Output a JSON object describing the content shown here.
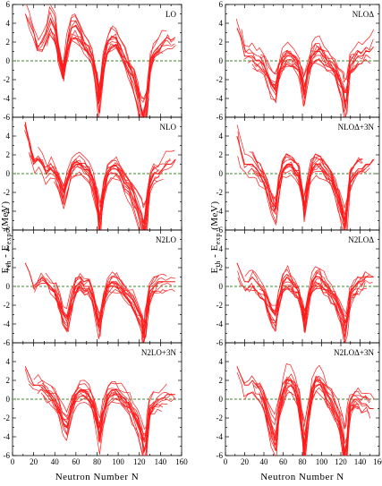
{
  "chart_data": {
    "type": "line",
    "layout": "4x2 panel grid",
    "xlabel": "Neutron Number N",
    "ylabel": "E_th - E_exp (MeV)",
    "ylabel_main": "E",
    "ylabel_sub1": "th",
    "ylabel_mid": " - E",
    "ylabel_sub2": "exp",
    "ylabel_unit": " (MeV)",
    "xlim": [
      0,
      160
    ],
    "ylim": [
      -6,
      6
    ],
    "xticks": [
      "0",
      "20",
      "40",
      "60",
      "80",
      "100",
      "120",
      "140",
      "160"
    ],
    "yticks": [
      "-6",
      "-4",
      "-2",
      "0",
      "2",
      "4",
      "6"
    ],
    "zero_line": {
      "style": "dashed",
      "color": "#3a8a2a"
    },
    "series_color": "#ff1a1a",
    "panels": [
      {
        "label": "LO",
        "column": 0,
        "row": 0,
        "curve": {
          "x": [
            12,
            16,
            20,
            24,
            28,
            32,
            36,
            40,
            44,
            48,
            52,
            56,
            60,
            64,
            68,
            72,
            76,
            80,
            82,
            86,
            90,
            94,
            98,
            102,
            106,
            110,
            114,
            118,
            122,
            124,
            126,
            128,
            130,
            134,
            138,
            142,
            146,
            150,
            154
          ],
          "y": [
            5,
            4,
            3,
            1.5,
            2,
            3,
            4.5,
            3.5,
            1,
            -1,
            2,
            3.5,
            3.8,
            3,
            2,
            1.5,
            0.5,
            -2,
            -4,
            0,
            2,
            2.5,
            2.5,
            1.5,
            0.5,
            -0.5,
            -1.5,
            -3,
            -5.5,
            -6,
            -5,
            -3,
            0,
            1,
            1.5,
            2,
            2.5,
            2.2,
            2.5
          ]
        }
      },
      {
        "label": "NLO",
        "column": 0,
        "row": 1,
        "curve": {
          "x": [
            12,
            16,
            20,
            24,
            28,
            32,
            36,
            40,
            44,
            48,
            52,
            56,
            60,
            64,
            68,
            72,
            76,
            80,
            82,
            86,
            90,
            94,
            98,
            102,
            106,
            110,
            114,
            118,
            122,
            124,
            126,
            128,
            130,
            134,
            138,
            142,
            146,
            150,
            154
          ],
          "y": [
            5.5,
            3,
            1,
            1.5,
            1,
            0,
            0.5,
            0,
            -1,
            -2.5,
            -1,
            0.5,
            1,
            1,
            0.5,
            0,
            -1,
            -3,
            -5.5,
            -2,
            0,
            0.5,
            0.5,
            0,
            -1,
            -1.5,
            -2.5,
            -3.5,
            -5,
            -6,
            -5,
            -3,
            -1,
            0,
            0,
            0.5,
            1,
            1,
            1.5
          ]
        }
      },
      {
        "label": "N2LO",
        "column": 0,
        "row": 2,
        "curve": {
          "x": [
            12,
            16,
            20,
            24,
            28,
            32,
            36,
            40,
            44,
            48,
            52,
            56,
            60,
            64,
            68,
            72,
            76,
            80,
            82,
            86,
            90,
            94,
            98,
            102,
            106,
            110,
            114,
            118,
            122,
            124,
            126,
            128,
            130,
            134,
            138,
            142,
            146,
            150,
            154
          ],
          "y": [
            2.5,
            1.5,
            0,
            0.5,
            1,
            0.5,
            0,
            -0.5,
            -1.5,
            -3,
            -3.5,
            -1.5,
            0,
            0.5,
            0,
            0,
            -1,
            -3,
            -4,
            -1.5,
            0,
            0.5,
            0.5,
            0,
            -0.5,
            -1,
            -1.5,
            -2.5,
            -3.5,
            -5,
            -4,
            -2,
            -0.5,
            0,
            0.5,
            0.5,
            0.5,
            0.5,
            0.5
          ]
        }
      },
      {
        "label": "N2LO+3N",
        "column": 0,
        "row": 3,
        "curve": {
          "x": [
            12,
            16,
            20,
            24,
            28,
            32,
            36,
            40,
            44,
            48,
            52,
            56,
            60,
            64,
            68,
            72,
            76,
            80,
            82,
            86,
            90,
            94,
            98,
            102,
            106,
            110,
            114,
            118,
            122,
            124,
            126,
            128,
            130,
            134,
            138,
            142,
            146,
            150,
            154
          ],
          "y": [
            3.5,
            2.5,
            1.5,
            1.5,
            1.5,
            1,
            0.5,
            0,
            -1,
            -2.5,
            -3,
            -1,
            0.5,
            1,
            1,
            0.5,
            -0.5,
            -2.5,
            -4,
            -1.5,
            0.5,
            1,
            1,
            0.5,
            0,
            -0.5,
            -1.5,
            -2.5,
            -4,
            -5.5,
            -5,
            -3,
            -1,
            -0.5,
            0,
            0,
            0.5,
            0.5,
            0.5
          ]
        }
      },
      {
        "label": "NLOΔ",
        "column": 1,
        "row": 0,
        "curve": {
          "x": [
            12,
            16,
            20,
            24,
            28,
            32,
            36,
            40,
            44,
            48,
            52,
            56,
            60,
            64,
            68,
            72,
            76,
            80,
            82,
            86,
            90,
            94,
            98,
            102,
            106,
            110,
            114,
            118,
            122,
            124,
            126,
            128,
            130,
            134,
            138,
            142,
            146,
            150,
            154
          ],
          "y": [
            3.5,
            2.5,
            0.5,
            0.5,
            0.5,
            0,
            0,
            -0.5,
            -1.5,
            -2.5,
            -3,
            -1,
            0,
            0.5,
            0.5,
            0,
            -0.5,
            -2,
            -3.5,
            -1,
            0.5,
            1,
            1,
            0.5,
            0,
            -0.5,
            -1,
            -2,
            -3,
            -4.5,
            -4,
            -2,
            -0.5,
            0,
            0.5,
            0.5,
            1,
            1,
            1.5
          ]
        }
      },
      {
        "label": "NLOΔ+3N",
        "column": 1,
        "row": 1,
        "curve": {
          "x": [
            12,
            16,
            20,
            24,
            28,
            32,
            36,
            40,
            44,
            48,
            52,
            56,
            60,
            64,
            68,
            72,
            76,
            80,
            82,
            86,
            90,
            94,
            98,
            102,
            106,
            110,
            114,
            118,
            122,
            124,
            126,
            128,
            130,
            134,
            138,
            142,
            146,
            150,
            154
          ],
          "y": [
            4,
            2.5,
            1,
            1,
            1,
            0.5,
            0,
            -0.5,
            -1.5,
            -3,
            -3.5,
            -1,
            0.5,
            1,
            1,
            0.5,
            0,
            -2,
            -3.5,
            -1,
            0.5,
            1,
            1,
            0.5,
            0,
            -0.5,
            -1.5,
            -2.5,
            -4,
            -5,
            -4,
            -2,
            -0.5,
            0,
            0.5,
            0.5,
            1,
            1,
            1.5
          ]
        }
      },
      {
        "label": "N2LOΔ",
        "column": 1,
        "row": 2,
        "curve": {
          "x": [
            12,
            16,
            20,
            24,
            28,
            32,
            36,
            40,
            44,
            48,
            52,
            56,
            60,
            64,
            68,
            72,
            76,
            80,
            82,
            86,
            90,
            94,
            98,
            102,
            106,
            110,
            114,
            118,
            122,
            124,
            126,
            128,
            130,
            134,
            138,
            142,
            146,
            150,
            154
          ],
          "y": [
            2.5,
            1.5,
            0.5,
            0.5,
            1,
            0.5,
            0,
            -0.5,
            -1.5,
            -2.5,
            -3,
            -1,
            0.5,
            1,
            0.5,
            0,
            -0.5,
            -2,
            -3.5,
            -1,
            0.5,
            1,
            1,
            0.5,
            0,
            -0.5,
            -1,
            -2,
            -3,
            -4,
            -3.5,
            -2,
            -0.5,
            0,
            0.5,
            0.5,
            1,
            1,
            1
          ]
        }
      },
      {
        "label": "N2LOΔ+3N",
        "column": 1,
        "row": 3,
        "curve": {
          "x": [
            12,
            16,
            20,
            24,
            28,
            32,
            36,
            40,
            44,
            48,
            52,
            56,
            60,
            64,
            68,
            72,
            76,
            80,
            82,
            86,
            90,
            94,
            98,
            102,
            106,
            110,
            114,
            118,
            122,
            124,
            126,
            128,
            130,
            134,
            138,
            142,
            146,
            150,
            154
          ],
          "y": [
            3.5,
            2.5,
            1.5,
            1.5,
            2,
            1.5,
            1,
            0,
            -1.5,
            -3,
            -4,
            -1,
            1,
            2,
            2,
            1.5,
            0,
            -3,
            -5,
            -1.5,
            1,
            2,
            2,
            1.5,
            0.5,
            0,
            -1,
            -2,
            -4,
            -6,
            -5,
            -2,
            -0.5,
            0,
            0,
            -0.5,
            -0.5,
            -1,
            -1
          ]
        }
      }
    ]
  }
}
